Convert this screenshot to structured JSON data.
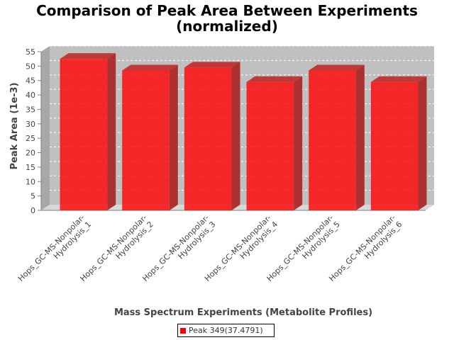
{
  "chart_data": {
    "type": "bar",
    "title": [
      "Comparison of Peak Area Between Experiments",
      "(normalized)"
    ],
    "xlabel": "Mass Spectrum Experiments (Metabolite Profiles)",
    "ylabel": "Peak Area (1e-3)",
    "ylim": [
      0,
      55
    ],
    "yticks": [
      0,
      5,
      10,
      15,
      20,
      25,
      30,
      35,
      40,
      45,
      50,
      55
    ],
    "categories": [
      [
        "Hops_GC-MS-Nonpolar-",
        "Hydrolysis_1"
      ],
      [
        "Hops_GC-MS-Nonpolar-",
        "Hydrolysis_2"
      ],
      [
        "Hops_GC-MS-Nonpolar-",
        "Hydrolysis_3"
      ],
      [
        "Hops_GC-MS-Nonpolar-",
        "Hydrolysis_4"
      ],
      [
        "Hops_GC-MS-Nonpolar-",
        "Hydrolysis_5"
      ],
      [
        "Hops_GC-MS-Nonpolar-",
        "Hydrolysis_6"
      ]
    ],
    "series": [
      {
        "name": "Peak 349(37.4791)",
        "values": [
          52.5,
          48.5,
          49.5,
          44.5,
          48.5,
          44.5
        ],
        "color": "#ff0000"
      }
    ],
    "grid": true,
    "legend_position": "bottom"
  }
}
